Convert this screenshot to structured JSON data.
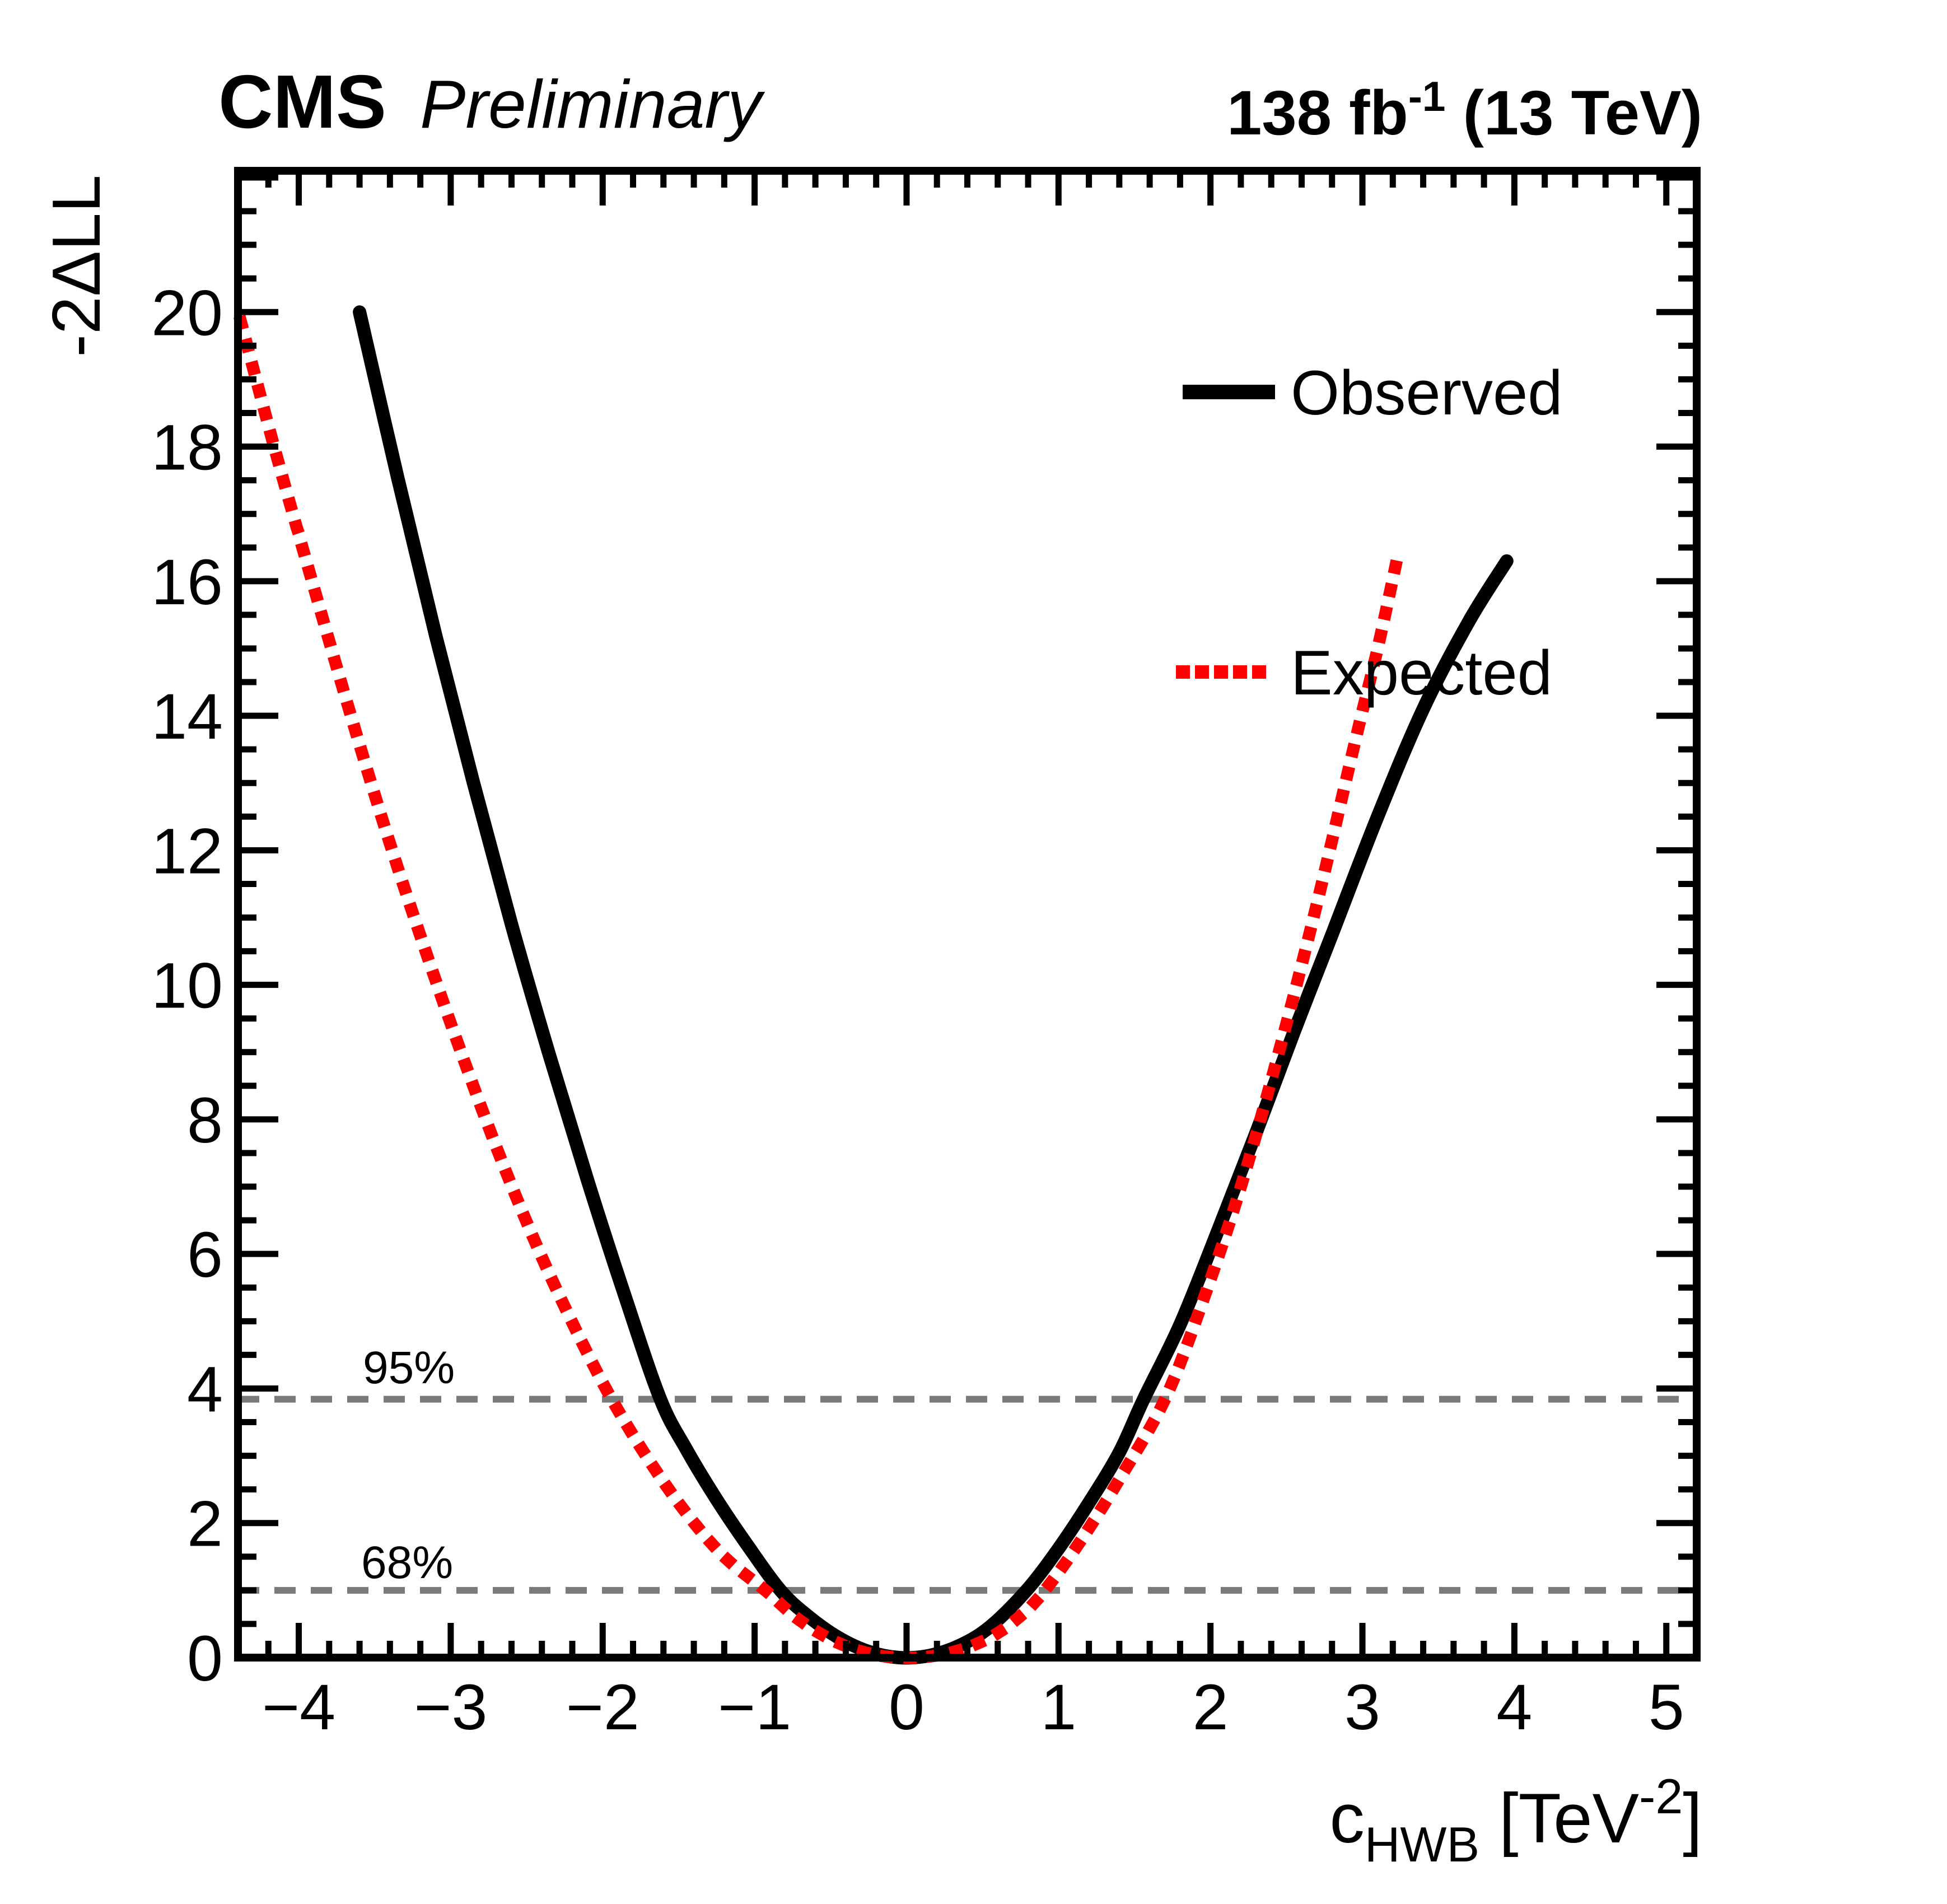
{
  "header": {
    "experiment": "CMS",
    "status": "Preliminary",
    "lumi": {
      "prefix": "138 fb",
      "sup": "-1",
      "suffix": " (13 TeV)"
    }
  },
  "colors": {
    "observed": "#000000",
    "expected": "#ff0000",
    "confidence_line": "#7a7a7a",
    "frame": "#000000",
    "background": "#ffffff"
  },
  "chart_data": {
    "type": "line",
    "title": "CMS Preliminary",
    "ylabel": "-2ΔLL",
    "xlabel_parts": {
      "base": "c",
      "sub": "HWB",
      "open": " [TeV",
      "sup": "-2",
      "close": "]"
    },
    "xlim": [
      -4.4,
      5.2
    ],
    "ylim": [
      0,
      22.1
    ],
    "x_major_step": 1,
    "x_minor_step": 0.2,
    "y_major_step": 2,
    "y_minor_step": 0.5,
    "grid": false,
    "legend_position": "top-right",
    "x_ticks": [
      {
        "v": -4,
        "label": "−4"
      },
      {
        "v": -3,
        "label": "−3"
      },
      {
        "v": -2,
        "label": "−2"
      },
      {
        "v": -1,
        "label": "−1"
      },
      {
        "v": 0,
        "label": "0"
      },
      {
        "v": 1,
        "label": "1"
      },
      {
        "v": 2,
        "label": "2"
      },
      {
        "v": 3,
        "label": "3"
      },
      {
        "v": 4,
        "label": "4"
      },
      {
        "v": 5,
        "label": "5"
      }
    ],
    "y_ticks": [
      {
        "v": 0,
        "label": "0"
      },
      {
        "v": 2,
        "label": "2"
      },
      {
        "v": 4,
        "label": "4"
      },
      {
        "v": 6,
        "label": "6"
      },
      {
        "v": 8,
        "label": "8"
      },
      {
        "v": 10,
        "label": "10"
      },
      {
        "v": 12,
        "label": "12"
      },
      {
        "v": 14,
        "label": "14"
      },
      {
        "v": 16,
        "label": "16"
      },
      {
        "v": 18,
        "label": "18"
      },
      {
        "v": 20,
        "label": "20"
      }
    ],
    "confidence_lines": [
      {
        "label": "95%",
        "y": 3.84
      },
      {
        "label": "68%",
        "y": 1.0
      }
    ],
    "series": [
      {
        "name": "Observed",
        "color": "#000000",
        "style": "solid",
        "points": [
          [
            -3.6,
            20.0
          ],
          [
            -3.35,
            17.55
          ],
          [
            -3.1,
            15.2
          ],
          [
            -2.85,
            13.0
          ],
          [
            -2.6,
            10.9
          ],
          [
            -2.35,
            8.95
          ],
          [
            -2.1,
            7.1
          ],
          [
            -1.85,
            5.35
          ],
          [
            -1.62,
            3.84
          ],
          [
            -1.45,
            3.1
          ],
          [
            -1.25,
            2.35
          ],
          [
            -1.05,
            1.68
          ],
          [
            -0.83,
            1.0
          ],
          [
            -0.65,
            0.62
          ],
          [
            -0.45,
            0.3
          ],
          [
            -0.25,
            0.09
          ],
          [
            -0.05,
            0.0
          ],
          [
            0.15,
            0.03
          ],
          [
            0.35,
            0.18
          ],
          [
            0.55,
            0.46
          ],
          [
            0.79,
            1.0
          ],
          [
            1.0,
            1.62
          ],
          [
            1.2,
            2.3
          ],
          [
            1.4,
            3.05
          ],
          [
            1.56,
            3.84
          ],
          [
            1.8,
            4.95
          ],
          [
            2.05,
            6.35
          ],
          [
            2.3,
            7.8
          ],
          [
            2.55,
            9.3
          ],
          [
            2.8,
            10.75
          ],
          [
            3.1,
            12.5
          ],
          [
            3.4,
            14.1
          ],
          [
            3.7,
            15.4
          ],
          [
            3.95,
            16.3
          ]
        ]
      },
      {
        "name": "Expected",
        "color": "#ff0000",
        "style": "dotted",
        "points": [
          [
            -4.38,
            19.85
          ],
          [
            -4.15,
            17.9
          ],
          [
            -3.9,
            15.9
          ],
          [
            -3.65,
            13.95
          ],
          [
            -3.4,
            12.1
          ],
          [
            -3.15,
            10.4
          ],
          [
            -2.9,
            8.8
          ],
          [
            -2.65,
            7.3
          ],
          [
            -2.4,
            5.95
          ],
          [
            -2.15,
            4.75
          ],
          [
            -1.94,
            3.84
          ],
          [
            -1.7,
            2.95
          ],
          [
            -1.45,
            2.15
          ],
          [
            -1.2,
            1.5
          ],
          [
            -0.93,
            1.0
          ],
          [
            -0.7,
            0.55
          ],
          [
            -0.45,
            0.22
          ],
          [
            -0.2,
            0.04
          ],
          [
            0.05,
            0.0
          ],
          [
            0.3,
            0.08
          ],
          [
            0.55,
            0.3
          ],
          [
            0.75,
            0.62
          ],
          [
            0.91,
            1.0
          ],
          [
            1.15,
            1.75
          ],
          [
            1.4,
            2.65
          ],
          [
            1.7,
            3.84
          ],
          [
            1.95,
            5.3
          ],
          [
            2.2,
            7.0
          ],
          [
            2.45,
            9.0
          ],
          [
            2.7,
            11.2
          ],
          [
            2.95,
            13.6
          ],
          [
            3.1,
            15.0
          ],
          [
            3.23,
            16.35
          ]
        ]
      }
    ]
  }
}
